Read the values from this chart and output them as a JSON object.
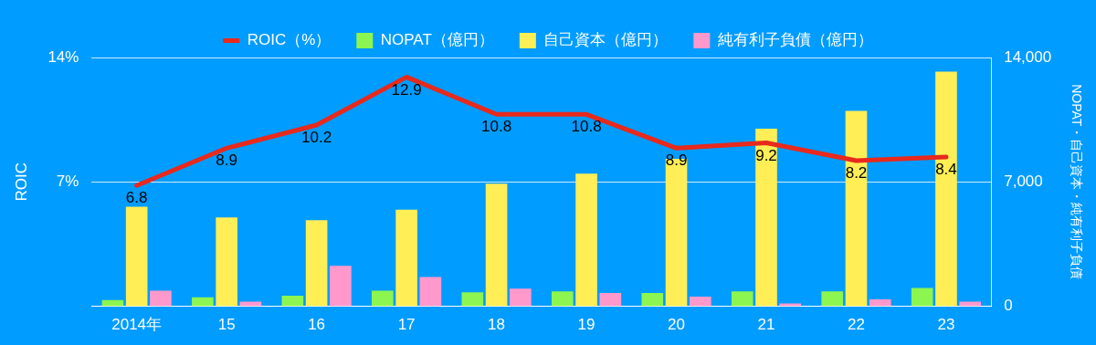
{
  "chart_data": {
    "type": "bar",
    "categories": [
      "2014年",
      "15",
      "16",
      "17",
      "18",
      "19",
      "20",
      "21",
      "22",
      "23"
    ],
    "ylabel": "ROIC",
    "y2label": "NOPAT・自己資本・純有利子負債",
    "series": [
      {
        "name": "ROIC（%）",
        "type": "line",
        "color": "#e8291c",
        "values": [
          6.8,
          8.9,
          10.2,
          12.9,
          10.8,
          10.8,
          8.9,
          9.2,
          8.2,
          8.4
        ],
        "value_labels": [
          "6.8",
          "8.9",
          "10.2",
          "12.9",
          "10.8",
          "10.8",
          "8.9",
          "9.2",
          "8.2",
          "8.4"
        ]
      },
      {
        "name": "NOPAT（億円）",
        "color": "#8cf54f",
        "axis": "y2",
        "values": [
          350,
          500,
          600,
          880,
          790,
          840,
          750,
          840,
          840,
          1030
        ]
      },
      {
        "name": "自己資本（億円）",
        "color": "#ffee55",
        "axis": "y2",
        "values": [
          5600,
          5000,
          4850,
          5440,
          6900,
          7460,
          8300,
          10000,
          11000,
          13200
        ]
      },
      {
        "name": "純有利子負債（億円）",
        "color": "#ff99cc",
        "axis": "y2",
        "values": [
          880,
          260,
          2280,
          1650,
          990,
          750,
          550,
          160,
          390,
          260
        ]
      }
    ],
    "ylim": [
      0,
      14
    ],
    "yticks": [
      {
        "value": 0,
        "label": null
      },
      {
        "value": 7,
        "label": "7%"
      },
      {
        "value": 14,
        "label": "14%"
      }
    ],
    "y2lim": [
      0,
      14000
    ],
    "y2ticks": [
      0,
      {
        "value": 7000,
        "label": "7,000"
      },
      {
        "value": 14000,
        "label": "14,000"
      }
    ],
    "grid": "y",
    "legend": "top",
    "marker": "none",
    "line_style": "solid"
  }
}
